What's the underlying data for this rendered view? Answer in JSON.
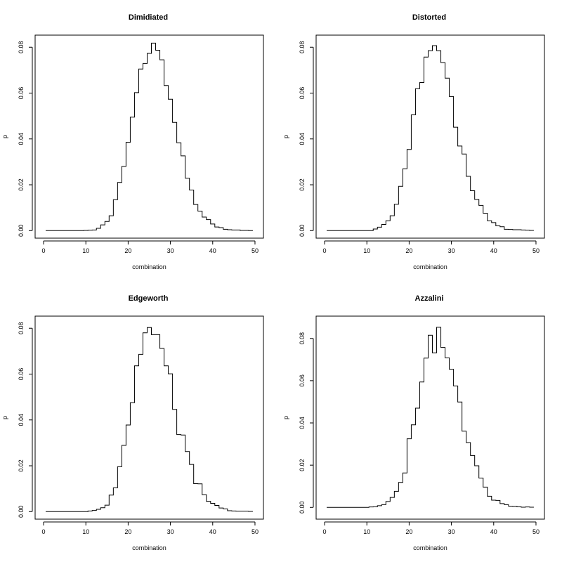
{
  "chart_data": [
    {
      "type": "line",
      "step": true,
      "title": "Dimidiated",
      "xlabel": "combination",
      "ylabel": "p",
      "xlim": [
        0,
        50
      ],
      "ylim": [
        0,
        0.082
      ],
      "xticks": [
        0,
        10,
        20,
        30,
        40,
        50
      ],
      "yticks": [
        0.0,
        0.02,
        0.04,
        0.06,
        0.08
      ],
      "ytick_labels": [
        "0.00",
        "0.02",
        "0.04",
        "0.06",
        "0.08"
      ],
      "x": [
        1,
        2,
        3,
        4,
        5,
        6,
        7,
        8,
        9,
        10,
        11,
        12,
        13,
        14,
        15,
        16,
        17,
        18,
        19,
        20,
        21,
        22,
        23,
        24,
        25,
        26,
        27,
        28,
        29,
        30,
        31,
        32,
        33,
        34,
        35,
        36,
        37,
        38,
        39,
        40,
        41,
        42,
        43,
        44,
        45,
        46,
        47,
        48,
        49
      ],
      "values": [
        0,
        0,
        0,
        0,
        0,
        0,
        0,
        0,
        0,
        0.0001,
        0.0002,
        0.0003,
        0.001,
        0.0025,
        0.004,
        0.0065,
        0.0135,
        0.021,
        0.028,
        0.0385,
        0.0495,
        0.0602,
        0.0705,
        0.0729,
        0.0773,
        0.0818,
        0.0787,
        0.0745,
        0.0633,
        0.0573,
        0.0472,
        0.0383,
        0.0326,
        0.0229,
        0.0177,
        0.0114,
        0.0085,
        0.0059,
        0.0048,
        0.0029,
        0.0016,
        0.0013,
        0.0006,
        0.0004,
        0.0003,
        0.0003,
        0.0001,
        0.0001,
        0
      ]
    },
    {
      "type": "line",
      "step": true,
      "title": "Distorted",
      "xlabel": "combination",
      "ylabel": "p",
      "xlim": [
        0,
        50
      ],
      "ylim": [
        0,
        0.082
      ],
      "xticks": [
        0,
        10,
        20,
        30,
        40,
        50
      ],
      "yticks": [
        0.0,
        0.02,
        0.04,
        0.06,
        0.08
      ],
      "ytick_labels": [
        "0.00",
        "0.02",
        "0.04",
        "0.06",
        "0.08"
      ],
      "x": [
        1,
        2,
        3,
        4,
        5,
        6,
        7,
        8,
        9,
        10,
        11,
        12,
        13,
        14,
        15,
        16,
        17,
        18,
        19,
        20,
        21,
        22,
        23,
        24,
        25,
        26,
        27,
        28,
        29,
        30,
        31,
        32,
        33,
        34,
        35,
        36,
        37,
        38,
        39,
        40,
        41,
        42,
        43,
        44,
        45,
        46,
        47,
        48,
        49
      ],
      "values": [
        0,
        0,
        0,
        0,
        0,
        0,
        0,
        0,
        0,
        0,
        0,
        0.0007,
        0.0015,
        0.0027,
        0.0043,
        0.0065,
        0.0115,
        0.0193,
        0.027,
        0.0354,
        0.0505,
        0.0619,
        0.0646,
        0.0757,
        0.0785,
        0.0807,
        0.0785,
        0.0733,
        0.0665,
        0.0585,
        0.0451,
        0.0369,
        0.0334,
        0.0237,
        0.0174,
        0.0136,
        0.011,
        0.0076,
        0.0043,
        0.0035,
        0.0021,
        0.0017,
        0.0006,
        0.0005,
        0.0004,
        0.0004,
        0.0003,
        0.0002,
        0.0001
      ]
    },
    {
      "type": "line",
      "step": true,
      "title": "Edgeworth",
      "xlabel": "combination",
      "ylabel": "p",
      "xlim": [
        0,
        50
      ],
      "ylim": [
        0,
        0.082
      ],
      "xticks": [
        0,
        10,
        20,
        30,
        40,
        50
      ],
      "yticks": [
        0.0,
        0.02,
        0.04,
        0.06,
        0.08
      ],
      "ytick_labels": [
        "0.00",
        "0.02",
        "0.04",
        "0.06",
        "0.08"
      ],
      "x": [
        1,
        2,
        3,
        4,
        5,
        6,
        7,
        8,
        9,
        10,
        11,
        12,
        13,
        14,
        15,
        16,
        17,
        18,
        19,
        20,
        21,
        22,
        23,
        24,
        25,
        26,
        27,
        28,
        29,
        30,
        31,
        32,
        33,
        34,
        35,
        36,
        37,
        38,
        39,
        40,
        41,
        42,
        43,
        44,
        45,
        46,
        47,
        48,
        49
      ],
      "values": [
        0,
        0,
        0,
        0,
        0,
        0,
        0,
        0,
        0,
        0,
        0.0003,
        0.0005,
        0.001,
        0.0017,
        0.0028,
        0.0072,
        0.0104,
        0.0196,
        0.0289,
        0.0378,
        0.0475,
        0.0636,
        0.0686,
        0.078,
        0.0803,
        0.0772,
        0.0772,
        0.0712,
        0.0636,
        0.0601,
        0.0446,
        0.0336,
        0.0334,
        0.0262,
        0.0206,
        0.0122,
        0.0121,
        0.0074,
        0.0045,
        0.0036,
        0.0027,
        0.0016,
        0.0012,
        0.0004,
        0.0003,
        0.0002,
        0.0002,
        0.0002,
        0.0001
      ]
    },
    {
      "type": "line",
      "step": true,
      "title": "Azzalini",
      "xlabel": "combination",
      "ylabel": "p",
      "xlim": [
        0,
        50
      ],
      "ylim": [
        -0.002,
        0.087
      ],
      "xticks": [
        0,
        10,
        20,
        30,
        40,
        50
      ],
      "yticks": [
        0.0,
        0.02,
        0.04,
        0.06,
        0.08
      ],
      "ytick_labels": [
        "0.00",
        "0.02",
        "0.04",
        "0.06",
        "0.08"
      ],
      "x": [
        1,
        2,
        3,
        4,
        5,
        6,
        7,
        8,
        9,
        10,
        11,
        12,
        13,
        14,
        15,
        16,
        17,
        18,
        19,
        20,
        21,
        22,
        23,
        24,
        25,
        26,
        27,
        28,
        29,
        30,
        31,
        32,
        33,
        34,
        35,
        36,
        37,
        38,
        39,
        40,
        41,
        42,
        43,
        44,
        45,
        46,
        47,
        48,
        49
      ],
      "values": [
        0,
        0,
        0,
        0,
        0,
        0,
        0,
        0,
        0,
        0,
        0.0002,
        0.0003,
        0.0008,
        0.0013,
        0.0028,
        0.0047,
        0.0076,
        0.0118,
        0.0163,
        0.0325,
        0.0391,
        0.047,
        0.0594,
        0.0707,
        0.0815,
        0.0732,
        0.0853,
        0.0757,
        0.0708,
        0.0654,
        0.0575,
        0.0499,
        0.0361,
        0.0307,
        0.0246,
        0.0197,
        0.0139,
        0.0096,
        0.0053,
        0.0034,
        0.0033,
        0.0018,
        0.0013,
        0.0006,
        0.0005,
        0.0003,
        0.0001,
        0.0002,
        0.0001
      ]
    }
  ]
}
